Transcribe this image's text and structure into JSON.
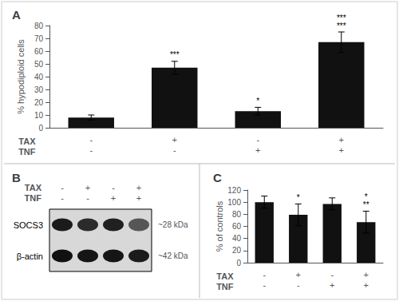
{
  "chart_data": [
    {
      "type": "bar",
      "title": "A",
      "categories": [
        "-\n-",
        "+\n-",
        "-\n+",
        "+\n+"
      ],
      "xlabel": "TAX\nTNF",
      "values": [
        8,
        47,
        13,
        67
      ],
      "errors": [
        2,
        5,
        3,
        8
      ],
      "annotations": [
        null,
        "***",
        "*",
        "***\n***"
      ],
      "color": "#111111",
      "ylabel": "% hypodiploid cells",
      "ylim": [
        0,
        80
      ],
      "yticks": [
        0,
        10,
        20,
        30,
        40,
        50,
        60,
        70,
        80
      ],
      "grid": false
    },
    {
      "type": "heatmap",
      "title": "B",
      "categories": [
        "-\n-",
        "+\n-",
        "-\n+",
        "+\n+"
      ],
      "xlabel": "TAX\nTNF",
      "y_categories": [
        "SOCS3",
        "β-actin"
      ],
      "y2_categories": [
        "~28 kDa",
        "~42 kDa"
      ],
      "values": [
        [
          0.88,
          0.8,
          0.85,
          0.6
        ],
        [
          0.92,
          0.9,
          0.9,
          0.88
        ]
      ]
    },
    {
      "type": "bar",
      "title": "C",
      "categories": [
        "-\n-",
        "+\n-",
        "-\n+",
        "+\n+"
      ],
      "xlabel": "TAX\nTNF",
      "values": [
        100,
        79,
        97,
        67
      ],
      "errors": [
        10,
        18,
        10,
        18
      ],
      "annotations": [
        null,
        "*",
        null,
        "*\n**"
      ],
      "color": "#111111",
      "ylabel": "% of controls",
      "ylim": [
        0,
        120
      ],
      "yticks": [
        0,
        20,
        40,
        60,
        80,
        100,
        120
      ],
      "grid": false
    }
  ]
}
